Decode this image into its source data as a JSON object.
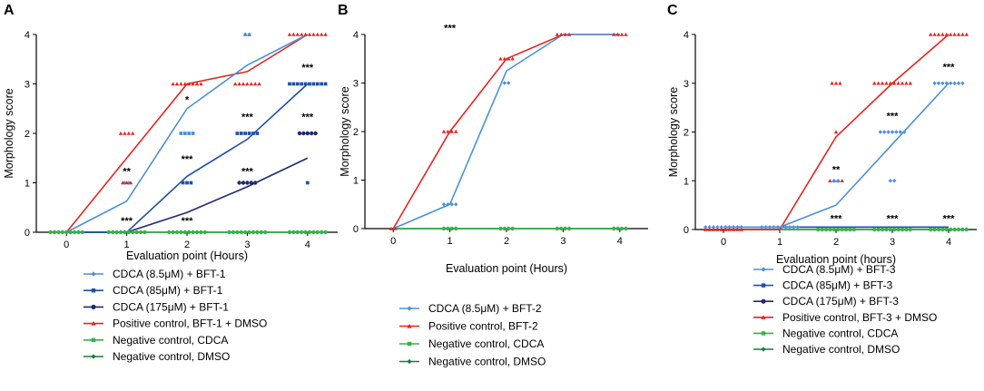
{
  "colors": {
    "cdca_8_5": "#4a90d9",
    "cdca_85": "#1f4fa8",
    "cdca_175": "#1f2a6e",
    "positive": "#e8231f",
    "negative_cdca": "#35b24a",
    "negative_dmso": "#1c7a3a",
    "axis": "#000000"
  },
  "chart_data": [
    {
      "panel": "A",
      "type": "line",
      "xlabel": "Evaluation point (Hours)",
      "ylabel": "Morphology score",
      "x": [
        0,
        1,
        2,
        3,
        4
      ],
      "xlim": [
        -0.5,
        4.5
      ],
      "ylim": [
        0,
        4
      ],
      "yticks": [
        0,
        1,
        2,
        3,
        4
      ],
      "xticks": [
        "0",
        "1",
        "2",
        "3",
        "4"
      ],
      "series": [
        {
          "name": "CDCA (8.5μM) + BFT-1",
          "color_key": "cdca_8_5",
          "marker": "diamond",
          "values": [
            0,
            0.63,
            2.5,
            3.38,
            4
          ]
        },
        {
          "name": "CDCA (85μM) + BFT-1",
          "color_key": "cdca_85",
          "marker": "square",
          "values": [
            0,
            0,
            1.13,
            1.88,
            3
          ]
        },
        {
          "name": "CDCA (175μM) + BFT-1",
          "color_key": "cdca_175",
          "marker": "circle",
          "values": [
            0,
            0,
            0.4,
            0.92,
            1.5
          ]
        },
        {
          "name": "Positive control, BFT-1 + DMSO",
          "color_key": "positive",
          "marker": "triangle",
          "values": [
            0,
            1.5,
            3,
            3.25,
            4
          ]
        },
        {
          "name": "Negative control, CDCA",
          "color_key": "negative_cdca",
          "marker": "square",
          "values": [
            0,
            0,
            0,
            0,
            0
          ]
        },
        {
          "name": "Negative control, DMSO",
          "color_key": "negative_dmso",
          "marker": "diamond",
          "values": [
            0,
            0,
            0,
            0,
            0
          ]
        }
      ],
      "points": [
        {
          "x": 0,
          "y": 0,
          "n": 9,
          "color_key": "negative_cdca",
          "marker": "circle"
        },
        {
          "x": 1,
          "y": 2,
          "n": 4,
          "color_key": "positive",
          "marker": "triangle"
        },
        {
          "x": 1,
          "y": 1,
          "n": 2,
          "color_key": "cdca_8_5",
          "marker": "diamond"
        },
        {
          "x": 1,
          "y": 1,
          "n": 3,
          "color_key": "positive",
          "marker": "triangle"
        },
        {
          "x": 1,
          "y": 0,
          "n": 10,
          "color_key": "negative_cdca",
          "marker": "circle"
        },
        {
          "x": 2,
          "y": 3,
          "n": 8,
          "color_key": "positive",
          "marker": "triangle"
        },
        {
          "x": 2,
          "y": 2,
          "n": 4,
          "color_key": "cdca_8_5",
          "marker": "square"
        },
        {
          "x": 2,
          "y": 1,
          "n": 3,
          "color_key": "cdca_85",
          "marker": "square"
        },
        {
          "x": 2,
          "y": 0,
          "n": 10,
          "color_key": "negative_cdca",
          "marker": "circle"
        },
        {
          "x": 3,
          "y": 4,
          "n": 2,
          "color_key": "positive",
          "marker": "triangle"
        },
        {
          "x": 3,
          "y": 4,
          "n": 2,
          "color_key": "cdca_8_5",
          "marker": "diamond"
        },
        {
          "x": 3,
          "y": 3,
          "n": 7,
          "color_key": "positive",
          "marker": "triangle"
        },
        {
          "x": 3,
          "y": 2,
          "n": 6,
          "color_key": "cdca_85",
          "marker": "square"
        },
        {
          "x": 3,
          "y": 1,
          "n": 5,
          "color_key": "cdca_175",
          "marker": "circle"
        },
        {
          "x": 3,
          "y": 0,
          "n": 10,
          "color_key": "negative_cdca",
          "marker": "circle"
        },
        {
          "x": 4,
          "y": 4,
          "n": 10,
          "color_key": "positive",
          "marker": "triangle"
        },
        {
          "x": 4,
          "y": 3,
          "n": 10,
          "color_key": "cdca_85",
          "marker": "square"
        },
        {
          "x": 4,
          "y": 2,
          "n": 5,
          "color_key": "cdca_175",
          "marker": "circle"
        },
        {
          "x": 4,
          "y": 1,
          "n": 1,
          "color_key": "cdca_85",
          "marker": "square"
        },
        {
          "x": 4,
          "y": 0,
          "n": 10,
          "color_key": "negative_cdca",
          "marker": "circle"
        }
      ],
      "annotations": [
        {
          "x": 1,
          "y": 1.2,
          "text": "**"
        },
        {
          "x": 1,
          "y": 0.2,
          "text": "***"
        },
        {
          "x": 2,
          "y": 2.65,
          "text": "*"
        },
        {
          "x": 2,
          "y": 1.45,
          "text": "***"
        },
        {
          "x": 2,
          "y": 0.2,
          "text": "***"
        },
        {
          "x": 3,
          "y": 2.3,
          "text": "***"
        },
        {
          "x": 3,
          "y": 1.2,
          "text": "***"
        },
        {
          "x": 4,
          "y": 3.3,
          "text": "***"
        },
        {
          "x": 4,
          "y": 2.3,
          "text": "***"
        }
      ]
    },
    {
      "panel": "B",
      "type": "line",
      "xlabel": "Evaluation point (Hours)",
      "ylabel": "Morphology score",
      "x": [
        0,
        1,
        2,
        3,
        4
      ],
      "xlim": [
        -0.5,
        4.5
      ],
      "ylim": [
        0,
        4
      ],
      "yticks": [
        0,
        1,
        2,
        3,
        4
      ],
      "xticks": [
        "0",
        "1",
        "2",
        "3",
        "4"
      ],
      "series": [
        {
          "name": "CDCA (8.5μM) + BFT-2",
          "color_key": "cdca_8_5",
          "marker": "diamond",
          "values": [
            0,
            0.5,
            3.25,
            4,
            4
          ]
        },
        {
          "name": "Positive control, BFT-2",
          "color_key": "positive",
          "marker": "triangle",
          "values": [
            0,
            2,
            3.5,
            4,
            4
          ]
        },
        {
          "name": "Negative control, CDCA",
          "color_key": "negative_cdca",
          "marker": "square",
          "values": [
            0,
            0,
            0,
            0,
            0
          ]
        },
        {
          "name": "Negative control, DMSO",
          "color_key": "negative_dmso",
          "marker": "diamond",
          "values": [
            0,
            0,
            0,
            0,
            0
          ]
        }
      ],
      "points": [
        {
          "x": 0,
          "y": 0,
          "n": 2,
          "color_key": "positive",
          "marker": "triangle"
        },
        {
          "x": 1,
          "y": 2,
          "n": 4,
          "color_key": "positive",
          "marker": "triangle"
        },
        {
          "x": 1,
          "y": 0.5,
          "n": 4,
          "color_key": "cdca_8_5",
          "marker": "diamond"
        },
        {
          "x": 1,
          "y": 0,
          "n": 4,
          "color_key": "negative_cdca",
          "marker": "circle"
        },
        {
          "x": 2,
          "y": 3.5,
          "n": 4,
          "color_key": "positive",
          "marker": "triangle"
        },
        {
          "x": 2,
          "y": 3,
          "n": 2,
          "color_key": "cdca_8_5",
          "marker": "diamond"
        },
        {
          "x": 2,
          "y": 0,
          "n": 4,
          "color_key": "negative_cdca",
          "marker": "circle"
        },
        {
          "x": 3,
          "y": 4,
          "n": 4,
          "color_key": "positive",
          "marker": "triangle"
        },
        {
          "x": 3,
          "y": 0,
          "n": 4,
          "color_key": "negative_cdca",
          "marker": "circle"
        },
        {
          "x": 4,
          "y": 4,
          "n": 4,
          "color_key": "positive",
          "marker": "triangle"
        },
        {
          "x": 4,
          "y": 0,
          "n": 4,
          "color_key": "negative_cdca",
          "marker": "circle"
        }
      ],
      "annotations": [
        {
          "x": 1,
          "y": 4.1,
          "text": "***"
        }
      ]
    },
    {
      "panel": "C",
      "type": "line",
      "xlabel": "Evaluation point (hours)",
      "ylabel": "Morphology score",
      "x": [
        0,
        1,
        2,
        3,
        4
      ],
      "xlim": [
        -0.5,
        4.5
      ],
      "ylim": [
        0,
        4
      ],
      "yticks": [
        0,
        1,
        2,
        3,
        4
      ],
      "xticks": [
        "0",
        "1",
        "2",
        "3",
        "4"
      ],
      "series": [
        {
          "name": "CDCA (8.5μM) + BFT-3",
          "color_key": "cdca_8_5",
          "marker": "diamond",
          "values": [
            0.05,
            0.05,
            0.5,
            1.75,
            3
          ]
        },
        {
          "name": "CDCA (85μM) + BFT-3",
          "color_key": "cdca_85",
          "marker": "square",
          "values": [
            0.05,
            0.05,
            0.05,
            0.05,
            0.05
          ]
        },
        {
          "name": "CDCA (175μM) + BFT-3",
          "color_key": "cdca_175",
          "marker": "circle",
          "values": [
            0.05,
            0.05,
            0.05,
            0.05,
            0.05
          ]
        },
        {
          "name": "Positive control, BFT-3 + DMSO",
          "color_key": "positive",
          "marker": "triangle",
          "values": [
            0,
            0,
            1.9,
            3,
            4
          ]
        },
        {
          "name": "Negative control, CDCA",
          "color_key": "negative_cdca",
          "marker": "square",
          "values": [
            0,
            0,
            0,
            0,
            0
          ]
        },
        {
          "name": "Negative control, DMSO",
          "color_key": "negative_dmso",
          "marker": "diamond",
          "values": [
            0,
            0,
            0,
            0,
            0
          ]
        }
      ],
      "points": [
        {
          "x": 0,
          "y": 0.05,
          "n": 10,
          "color_key": "cdca_8_5",
          "marker": "diamond"
        },
        {
          "x": 0,
          "y": 0,
          "n": 10,
          "color_key": "positive",
          "marker": "triangle"
        },
        {
          "x": 1,
          "y": 0.05,
          "n": 10,
          "color_key": "cdca_8_5",
          "marker": "diamond"
        },
        {
          "x": 2,
          "y": 3,
          "n": 3,
          "color_key": "positive",
          "marker": "triangle"
        },
        {
          "x": 2,
          "y": 2,
          "n": 1,
          "color_key": "positive",
          "marker": "triangle"
        },
        {
          "x": 2,
          "y": 1,
          "n": 4,
          "color_key": "positive",
          "marker": "triangle"
        },
        {
          "x": 2,
          "y": 1,
          "n": 2,
          "color_key": "cdca_8_5",
          "marker": "diamond"
        },
        {
          "x": 2,
          "y": 0,
          "n": 10,
          "color_key": "negative_cdca",
          "marker": "circle"
        },
        {
          "x": 3,
          "y": 3,
          "n": 10,
          "color_key": "positive",
          "marker": "triangle"
        },
        {
          "x": 3,
          "y": 2,
          "n": 7,
          "color_key": "cdca_8_5",
          "marker": "diamond"
        },
        {
          "x": 3,
          "y": 1,
          "n": 2,
          "color_key": "cdca_8_5",
          "marker": "diamond"
        },
        {
          "x": 3,
          "y": 0,
          "n": 10,
          "color_key": "negative_cdca",
          "marker": "circle"
        },
        {
          "x": 4,
          "y": 4,
          "n": 10,
          "color_key": "positive",
          "marker": "triangle"
        },
        {
          "x": 4,
          "y": 3,
          "n": 8,
          "color_key": "cdca_8_5",
          "marker": "diamond"
        },
        {
          "x": 4,
          "y": 0,
          "n": 10,
          "color_key": "negative_cdca",
          "marker": "circle"
        }
      ],
      "annotations": [
        {
          "x": 2,
          "y": 1.2,
          "text": "**"
        },
        {
          "x": 2,
          "y": 0.2,
          "text": "***"
        },
        {
          "x": 3,
          "y": 2.3,
          "text": "***"
        },
        {
          "x": 3,
          "y": 0.2,
          "text": "***"
        },
        {
          "x": 4,
          "y": 3.3,
          "text": "***"
        },
        {
          "x": 4,
          "y": 0.2,
          "text": "***"
        }
      ]
    }
  ]
}
